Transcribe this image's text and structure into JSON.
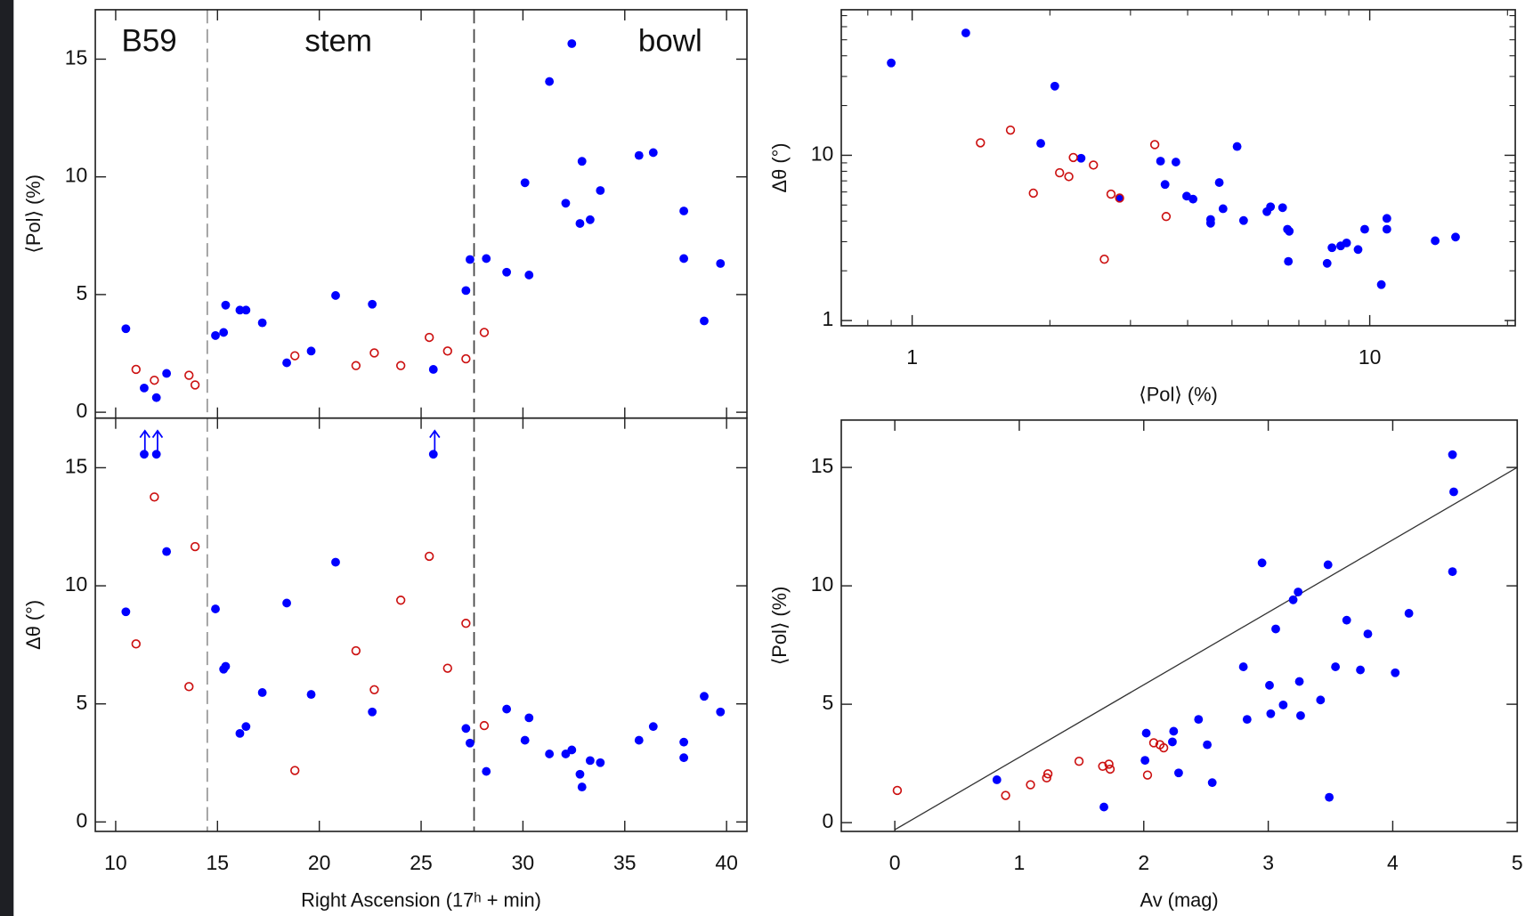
{
  "chart_data": [
    {
      "type": "scatter",
      "ylabel": "⟨Pol⟩ (%)",
      "xlim": [
        9.0,
        41.0
      ],
      "ylim": [
        -0.25,
        17.1
      ],
      "xticks": [
        10,
        15,
        20,
        25,
        30,
        35,
        40
      ],
      "show_xtick_labels": false,
      "yticks": [
        0,
        5,
        10,
        15
      ],
      "annotations": [
        "B59",
        "stem",
        "bowl"
      ],
      "vlines": [
        {
          "x": 14.5,
          "color": "#999999"
        },
        {
          "x": 27.6,
          "color": "#444444"
        }
      ],
      "series": [
        {
          "color": "#0000ff",
          "marker": "filled",
          "x": [
            10.5,
            11.4,
            12.0,
            12.5,
            14.9,
            15.3,
            15.4,
            16.1,
            16.4,
            17.2,
            18.4,
            19.6,
            20.8,
            22.6,
            25.6,
            27.2,
            27.4,
            28.2,
            29.2,
            30.3,
            30.1,
            31.3,
            32.1,
            32.4,
            32.8,
            32.9,
            33.3,
            33.8,
            35.7,
            36.4,
            37.9,
            37.9,
            38.9,
            39.7
          ],
          "values": [
            3.55,
            1.03,
            0.62,
            1.65,
            3.26,
            3.39,
            4.55,
            4.34,
            4.34,
            3.8,
            2.1,
            2.6,
            4.96,
            4.59,
            1.82,
            5.17,
            6.49,
            6.53,
            5.95,
            5.83,
            9.75,
            14.05,
            8.88,
            15.66,
            8.02,
            10.66,
            8.18,
            9.42,
            10.91,
            11.03,
            8.55,
            6.53,
            3.88,
            6.32
          ]
        },
        {
          "color": "#cc1111",
          "marker": "open",
          "x": [
            11.0,
            11.9,
            13.6,
            13.9,
            18.8,
            21.8,
            22.7,
            24.0,
            25.4,
            26.3,
            27.2,
            28.1
          ],
          "values": [
            1.82,
            1.36,
            1.57,
            1.16,
            2.4,
            1.98,
            2.52,
            1.98,
            3.18,
            2.6,
            2.27,
            3.39
          ]
        }
      ]
    },
    {
      "type": "scatter",
      "xlabel": "Right Ascension (17ʰ + min)",
      "ylabel": "Δθ (°)",
      "xlim": [
        9.0,
        41.0
      ],
      "ylim": [
        -0.4,
        17.1
      ],
      "xticks": [
        10,
        15,
        20,
        25,
        30,
        35,
        40
      ],
      "yticks": [
        0,
        5,
        10,
        15
      ],
      "vlines": [
        {
          "x": 14.5,
          "color": "#999999"
        },
        {
          "x": 27.6,
          "color": "#444444"
        }
      ],
      "series": [
        {
          "color": "#0000ff",
          "marker": "filled",
          "x": [
            10.5,
            11.4,
            12.0,
            12.5,
            14.9,
            15.3,
            15.4,
            16.1,
            16.4,
            17.2,
            18.4,
            19.6,
            20.8,
            22.6,
            25.6,
            27.2,
            27.4,
            28.2,
            29.2,
            30.3,
            30.1,
            31.3,
            32.1,
            32.4,
            32.8,
            32.9,
            33.3,
            33.8,
            35.7,
            36.4,
            37.9,
            37.9,
            38.9,
            39.7
          ],
          "values": [
            8.9,
            15.57,
            15.57,
            11.45,
            9.02,
            6.47,
            6.59,
            3.75,
            4.04,
            5.48,
            9.27,
            5.4,
            11.0,
            4.66,
            15.57,
            3.96,
            3.34,
            2.14,
            4.78,
            4.41,
            3.46,
            2.88,
            2.88,
            3.05,
            2.02,
            1.48,
            2.6,
            2.51,
            3.46,
            4.04,
            3.38,
            2.72,
            5.32,
            4.66
          ]
        },
        {
          "color": "#cc1111",
          "marker": "open",
          "x": [
            11.0,
            11.9,
            13.6,
            13.9,
            18.8,
            21.8,
            22.7,
            24.0,
            25.4,
            26.3,
            27.2,
            28.1
          ],
          "values": [
            7.54,
            13.76,
            5.73,
            11.66,
            2.18,
            7.25,
            5.6,
            9.39,
            11.25,
            6.51,
            8.41,
            4.08
          ]
        }
      ]
    },
    {
      "type": "scatter",
      "xlabel": "⟨Pol⟩ (%)",
      "ylabel": "Δθ (°)",
      "xscale": "log",
      "yscale": "log",
      "xlim": [
        0.7,
        20.8
      ],
      "ylim": [
        0.93,
        76
      ],
      "xticks": [
        1,
        10
      ],
      "yticks": [
        1,
        10
      ],
      "series": [
        {
          "color": "#0000ff",
          "marker": "filled",
          "x": [
            0.9,
            1.31,
            2.05,
            1.91,
            2.34,
            2.84,
            3.49,
            3.57,
            3.77,
            3.98,
            4.11,
            4.49,
            4.49,
            4.69,
            4.78,
            5.13,
            5.3,
            5.96,
            6.07,
            6.45,
            6.61,
            6.67,
            6.64,
            8.07,
            8.27,
            8.64,
            8.9,
            9.43,
            9.75,
            10.6,
            10.9,
            10.9,
            13.9,
            15.4
          ],
          "values": [
            36.2,
            55,
            26.2,
            11.8,
            9.6,
            5.51,
            9.22,
            6.66,
            9.1,
            5.66,
            5.43,
            3.88,
            4.09,
            6.84,
            4.75,
            11.3,
            4.03,
            4.56,
            4.88,
            4.82,
            3.57,
            3.47,
            2.28,
            2.22,
            2.76,
            2.83,
            2.95,
            2.69,
            3.57,
            1.65,
            4.15,
            3.57,
            3.04,
            3.2
          ]
        },
        {
          "color": "#cc1111",
          "marker": "open",
          "x": [
            1.41,
            1.64,
            1.84,
            2.1,
            2.2,
            2.25,
            2.49,
            2.63,
            2.72,
            2.84,
            3.39,
            3.59
          ],
          "values": [
            11.9,
            14.2,
            5.9,
            7.84,
            7.43,
            9.7,
            8.73,
            2.35,
            5.82,
            5.51,
            11.6,
            4.26
          ]
        }
      ]
    },
    {
      "type": "scatter",
      "xlabel": "Av (mag)",
      "ylabel": "⟨Pol⟩ (%)",
      "xlim": [
        -0.43,
        5.0
      ],
      "ylim": [
        -0.37,
        17.0
      ],
      "xticks": [
        0,
        1,
        2,
        3,
        4,
        5
      ],
      "yticks": [
        0,
        5,
        10,
        15
      ],
      "fit_line": {
        "x": [
          0,
          5
        ],
        "values": [
          -0.3,
          15
        ]
      },
      "series": [
        {
          "color": "#0000ff",
          "marker": "filled",
          "x": [
            0.82,
            1.68,
            2.01,
            2.02,
            2.23,
            2.24,
            2.28,
            2.44,
            2.51,
            2.55,
            2.8,
            2.83,
            2.95,
            3.01,
            3.02,
            3.06,
            3.12,
            3.2,
            3.24,
            3.25,
            3.26,
            3.42,
            3.48,
            3.49,
            3.54,
            3.63,
            3.74,
            3.8,
            4.02,
            4.13,
            4.48,
            4.49,
            4.48
          ],
          "values": [
            1.81,
            0.66,
            2.63,
            3.78,
            3.41,
            3.86,
            2.1,
            4.36,
            3.29,
            1.69,
            6.58,
            4.36,
            10.97,
            5.8,
            4.6,
            8.18,
            4.97,
            9.41,
            9.74,
            5.96,
            4.52,
            5.18,
            10.89,
            1.07,
            6.58,
            8.55,
            6.45,
            7.97,
            6.33,
            8.84,
            15.54,
            13.97,
            10.6
          ]
        },
        {
          "color": "#cc1111",
          "marker": "open",
          "x": [
            0.02,
            0.89,
            1.09,
            1.22,
            1.23,
            1.48,
            1.67,
            1.72,
            1.73,
            2.03,
            2.08,
            2.13,
            2.16
          ],
          "values": [
            1.36,
            1.15,
            1.6,
            1.89,
            2.06,
            2.59,
            2.38,
            2.47,
            2.26,
            2.01,
            3.37,
            3.29,
            3.16
          ]
        }
      ]
    }
  ]
}
